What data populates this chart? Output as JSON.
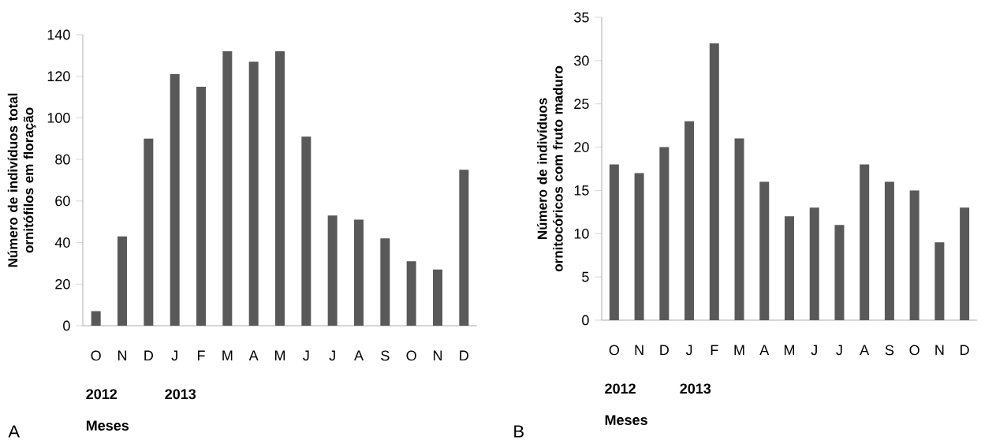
{
  "chart_data": [
    {
      "type": "bar",
      "title": "A",
      "ylabel": "Número de indivíduos total ornitófilos em floração",
      "categories": [
        "O",
        "N",
        "D",
        "J",
        "F",
        "M",
        "A",
        "M",
        "J",
        "J",
        "A",
        "S",
        "O",
        "N",
        "D"
      ],
      "values": [
        7,
        43,
        90,
        121,
        115,
        132,
        127,
        132,
        91,
        53,
        51,
        42,
        31,
        27,
        75
      ],
      "color": "#595959",
      "ylim": [
        0,
        140
      ],
      "yticks": [
        0,
        20,
        40,
        60,
        80,
        100,
        120,
        140
      ],
      "grid": false,
      "annotations": [
        "2012",
        "2013",
        "Meses"
      ]
    },
    {
      "type": "bar",
      "title": "B",
      "ylabel": "Número de indivíduos ornitocóricos com fruto maduro",
      "categories": [
        "O",
        "N",
        "D",
        "J",
        "F",
        "M",
        "A",
        "M",
        "J",
        "J",
        "A",
        "S",
        "O",
        "N",
        "D"
      ],
      "values": [
        18,
        17,
        20,
        23,
        32,
        21,
        16,
        12,
        13,
        11,
        18,
        16,
        15,
        9,
        13
      ],
      "color": "#595959",
      "ylim": [
        0,
        35
      ],
      "yticks": [
        0,
        5,
        10,
        15,
        20,
        25,
        30,
        35
      ],
      "grid": false,
      "annotations": [
        "2012",
        "2013",
        "Meses"
      ]
    }
  ]
}
